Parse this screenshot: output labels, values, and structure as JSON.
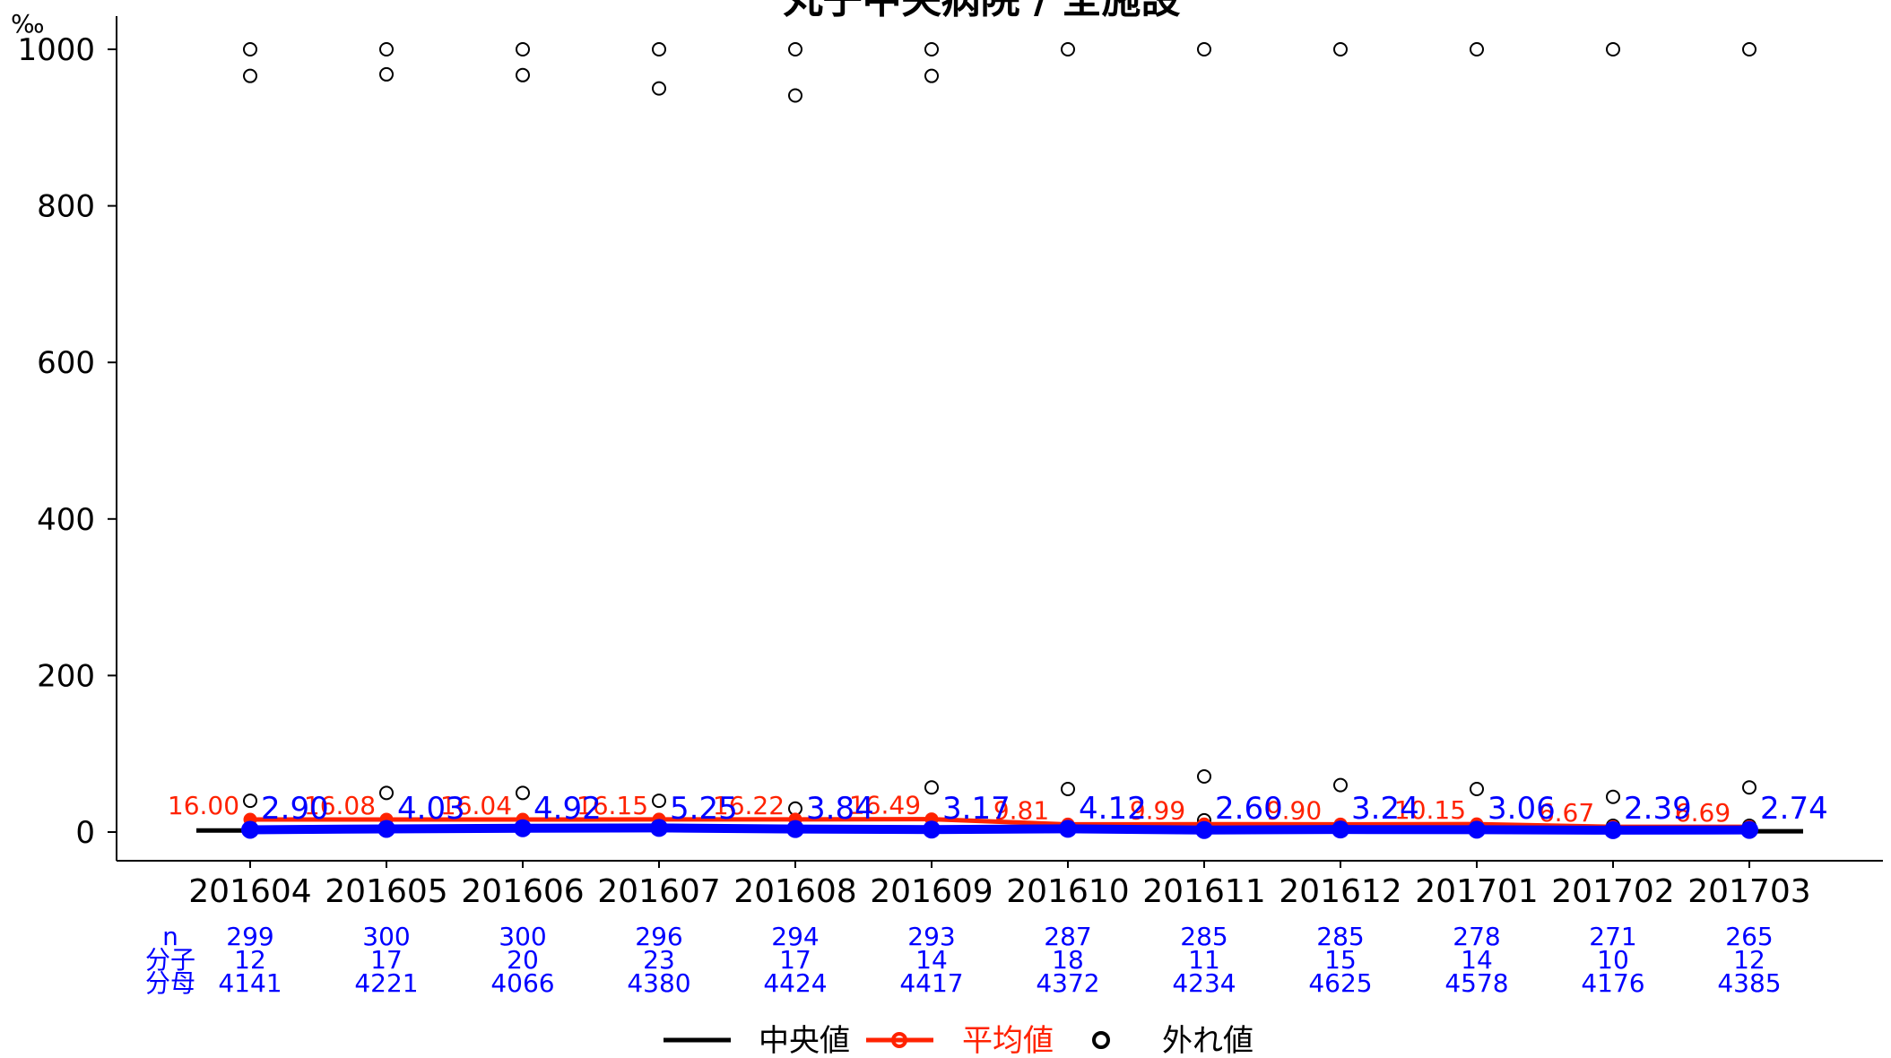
{
  "chart_data": {
    "type": "line",
    "title": "丸子中央病院 / 全施設",
    "ylabel": "‰",
    "xlabel": "",
    "ylim": [
      0,
      1000
    ],
    "yticks": [
      0,
      200,
      400,
      600,
      800,
      1000
    ],
    "categories": [
      "201604",
      "201605",
      "201606",
      "201607",
      "201608",
      "201609",
      "201610",
      "201611",
      "201612",
      "201701",
      "201702",
      "201703"
    ],
    "series": [
      {
        "name": "中央値",
        "color": "#000000",
        "values": [
          2.0,
          2.0,
          2.5,
          3.0,
          2.5,
          2.0,
          2.0,
          1.5,
          1.5,
          1.5,
          1.0,
          1.0
        ]
      },
      {
        "name": "平均値",
        "color": "#ff2200",
        "values": [
          16.0,
          16.08,
          16.04,
          16.15,
          16.22,
          16.49,
          9.81,
          9.99,
          9.9,
          10.15,
          6.67,
          6.69
        ],
        "labels": [
          "16.00",
          "16.08",
          "16.04",
          "16.15",
          "16.22",
          "16.49",
          "9.81",
          "9.99",
          "9.90",
          "10.15",
          "6.67",
          "6.69"
        ]
      },
      {
        "name": "丸子中央病院",
        "color": "#0000ff",
        "values": [
          2.9,
          4.03,
          4.92,
          5.25,
          3.84,
          3.17,
          4.12,
          2.6,
          3.24,
          3.06,
          2.39,
          2.74
        ],
        "labels": [
          "2.90",
          "4.03",
          "4.92",
          "5.25",
          "3.84",
          "3.17",
          "4.12",
          "2.60",
          "3.24",
          "3.06",
          "2.39",
          "2.74"
        ]
      }
    ],
    "outliers_name": "外れ値",
    "outliers": [
      [
        1000,
        966,
        40
      ],
      [
        1000,
        968,
        50
      ],
      [
        1000,
        967,
        50
      ],
      [
        1000,
        950,
        40
      ],
      [
        1000,
        941,
        30
      ],
      [
        1000,
        966,
        57
      ],
      [
        1000,
        55
      ],
      [
        1000,
        71,
        15
      ],
      [
        1000,
        60
      ],
      [
        1000,
        55
      ],
      [
        1000,
        45,
        8
      ],
      [
        1000,
        57,
        8
      ]
    ],
    "table": {
      "row_labels": [
        "n",
        "分子",
        "分母"
      ],
      "n": [
        "299",
        "300",
        "300",
        "296",
        "294",
        "293",
        "287",
        "285",
        "285",
        "278",
        "271",
        "265"
      ],
      "numerator": [
        "12",
        "17",
        "20",
        "23",
        "17",
        "14",
        "18",
        "11",
        "15",
        "14",
        "10",
        "12"
      ],
      "denominator": [
        "4141",
        "4221",
        "4066",
        "4380",
        "4424",
        "4417",
        "4372",
        "4234",
        "4625",
        "4578",
        "4176",
        "4385"
      ]
    },
    "legend": {
      "position": "bottom",
      "items": [
        "中央値",
        "平均値",
        "外れ値"
      ]
    },
    "grid": false
  }
}
